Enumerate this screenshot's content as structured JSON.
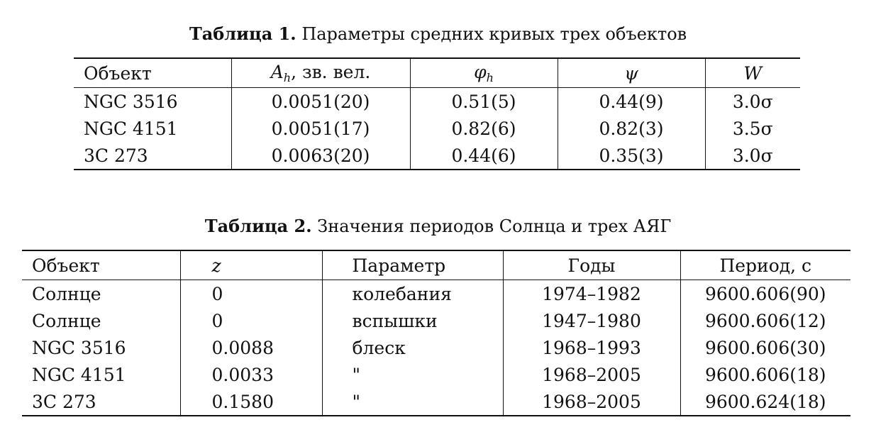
{
  "table1": {
    "caption_label": "Таблица 1.",
    "caption_text": "Параметры средних кривых трех объектов",
    "headers": {
      "object": "Объект",
      "amplitude_sym": "A",
      "amplitude_sub": "h",
      "amplitude_unit": ", зв. вел.",
      "phase_sym": "φ",
      "phase_sub": "h",
      "psi": "ψ",
      "w": "W"
    },
    "rows": [
      [
        "NGC 3516",
        "0.0051(20)",
        "0.51(5)",
        "0.44(9)",
        "3.0σ"
      ],
      [
        "NGC 4151",
        "0.0051(17)",
        "0.82(6)",
        "0.82(3)",
        "3.5σ"
      ],
      [
        "3C 273",
        "0.0063(20)",
        "0.44(6)",
        "0.35(3)",
        "3.0σ"
      ]
    ]
  },
  "table2": {
    "caption_label": "Таблица 2.",
    "caption_text": "Значения периодов Солнца и трех АЯГ",
    "headers": [
      "Объект",
      "z",
      "Параметр",
      "Годы",
      "Период, с"
    ],
    "rows": [
      [
        "Солнце",
        "0",
        "колебания",
        "1974–1982",
        "9600.606(90)"
      ],
      [
        "Солнце",
        "0",
        "вспышки",
        "1947–1980",
        "9600.606(12)"
      ],
      [
        "NGC 3516",
        "0.0088",
        "блеск",
        "1968–1993",
        "9600.606(30)"
      ],
      [
        "NGC 4151",
        "0.0033",
        "\"",
        "1968–2005",
        "9600.606(18)"
      ],
      [
        "3C 273",
        "0.1580",
        "\"",
        "1968–2005",
        "9600.624(18)"
      ]
    ]
  }
}
